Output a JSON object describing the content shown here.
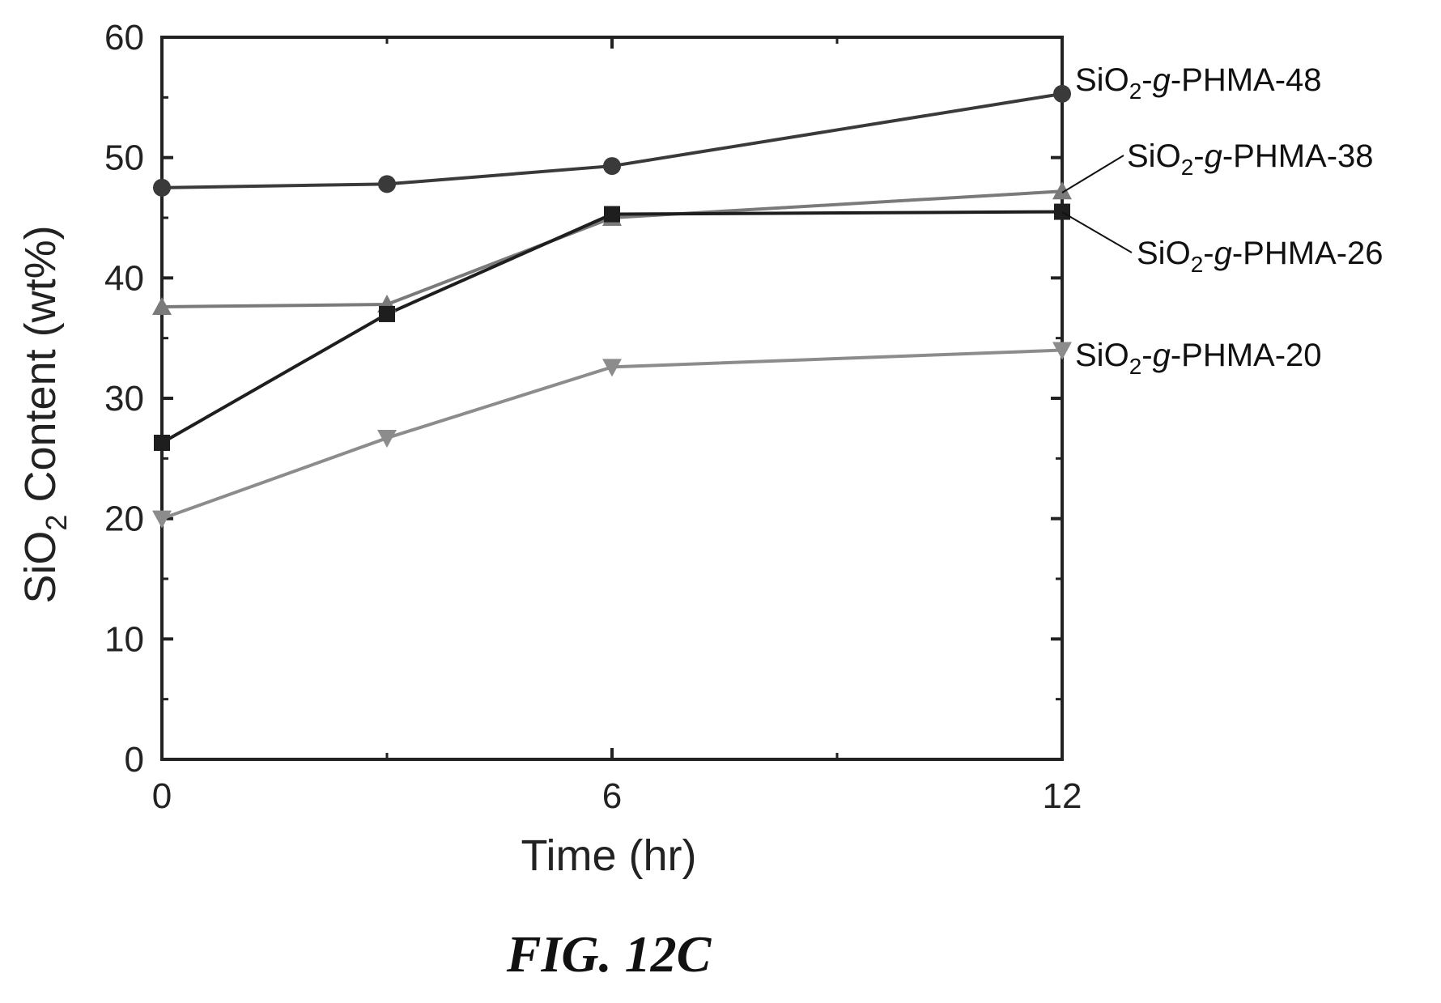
{
  "chart_data": {
    "type": "line",
    "title": "",
    "xlabel": "Time (hr)",
    "ylabel_parts": [
      "SiO",
      "2",
      " Content (wt%)"
    ],
    "x_ticks": [
      0,
      6,
      12
    ],
    "y_ticks": [
      0,
      10,
      20,
      30,
      40,
      50,
      60
    ],
    "xlim": [
      0,
      12
    ],
    "ylim": [
      0,
      60
    ],
    "grid": false,
    "legend": "inline labels at right",
    "series": [
      {
        "name": "SiO2-g-PHMA-48",
        "label_parts": [
          "SiO",
          "2",
          "-",
          "g",
          "-PHMA-48"
        ],
        "marker": "circle",
        "color": "#3a3a3a",
        "x": [
          0,
          3,
          6,
          12
        ],
        "y": [
          47.5,
          47.8,
          49.3,
          55.3
        ]
      },
      {
        "name": "SiO2-g-PHMA-38",
        "label_parts": [
          "SiO",
          "2",
          "-",
          "g",
          "-PHMA-38"
        ],
        "marker": "triangle-up",
        "color": "#7a7a7a",
        "x": [
          0,
          3,
          6,
          12
        ],
        "y": [
          37.6,
          37.8,
          45.0,
          47.2
        ]
      },
      {
        "name": "SiO2-g-PHMA-26",
        "label_parts": [
          "SiO",
          "2",
          "-",
          "g",
          "-PHMA-26"
        ],
        "marker": "square",
        "color": "#1e1e1e",
        "x": [
          0,
          3,
          6,
          12
        ],
        "y": [
          26.3,
          37.0,
          45.3,
          45.5
        ]
      },
      {
        "name": "SiO2-g-PHMA-20",
        "label_parts": [
          "SiO",
          "2",
          "-",
          "g",
          "-PHMA-20"
        ],
        "marker": "triangle-down",
        "color": "#8c8c8c",
        "x": [
          0,
          3,
          6,
          12
        ],
        "y": [
          20.0,
          26.7,
          32.6,
          34.0
        ]
      }
    ]
  },
  "caption": "FIG. 12C"
}
